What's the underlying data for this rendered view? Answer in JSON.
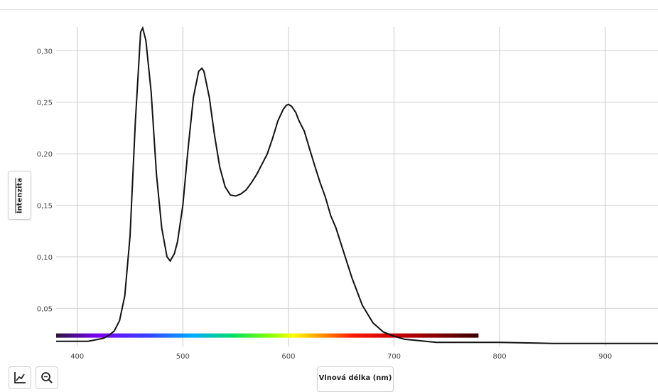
{
  "chart_data": {
    "type": "line",
    "xlabel": "Vlnová délka (nm)",
    "ylabel": "Intenzita",
    "xlim": [
      380,
      950
    ],
    "ylim": [
      0.013,
      0.323
    ],
    "x_ticks": [
      "400",
      "500",
      "600",
      "700",
      "800",
      "900"
    ],
    "y_ticks": [
      "0,05",
      "0,10",
      "0,15",
      "0,20",
      "0,25",
      "0,30"
    ],
    "grid": true,
    "line_color": "#111111",
    "spectrum_bar": {
      "start_nm": 380,
      "end_nm": 780,
      "level": 0.0236
    },
    "series": [
      {
        "x": [
          380,
          390,
          400,
          410,
          420,
          425,
          430,
          435,
          440,
          445,
          450,
          455,
          460,
          462,
          465,
          470,
          475,
          480,
          485,
          488,
          492,
          495,
          500,
          505,
          510,
          515,
          518,
          520,
          525,
          530,
          535,
          540,
          545,
          550,
          555,
          560,
          565,
          570,
          575,
          580,
          585,
          590,
          595,
          598,
          600,
          603,
          607,
          610,
          615,
          620,
          625,
          630,
          635,
          640,
          645,
          650,
          660,
          670,
          680,
          690,
          700,
          710,
          720,
          730,
          740,
          760,
          780,
          800,
          850,
          900,
          950
        ],
        "values": [
          0.018,
          0.018,
          0.018,
          0.018,
          0.02,
          0.021,
          0.024,
          0.028,
          0.038,
          0.062,
          0.12,
          0.23,
          0.318,
          0.322,
          0.31,
          0.26,
          0.18,
          0.128,
          0.1,
          0.096,
          0.103,
          0.115,
          0.15,
          0.205,
          0.255,
          0.28,
          0.283,
          0.28,
          0.255,
          0.218,
          0.187,
          0.168,
          0.16,
          0.159,
          0.161,
          0.165,
          0.172,
          0.18,
          0.19,
          0.2,
          0.215,
          0.232,
          0.243,
          0.247,
          0.248,
          0.246,
          0.24,
          0.232,
          0.222,
          0.205,
          0.188,
          0.172,
          0.158,
          0.14,
          0.128,
          0.112,
          0.08,
          0.053,
          0.036,
          0.027,
          0.023,
          0.02,
          0.019,
          0.018,
          0.017,
          0.017,
          0.017,
          0.017,
          0.016,
          0.016,
          0.016
        ]
      }
    ]
  },
  "icons": {
    "line_tool": "line-chart-icon",
    "zoom_tool": "zoom-icon"
  }
}
